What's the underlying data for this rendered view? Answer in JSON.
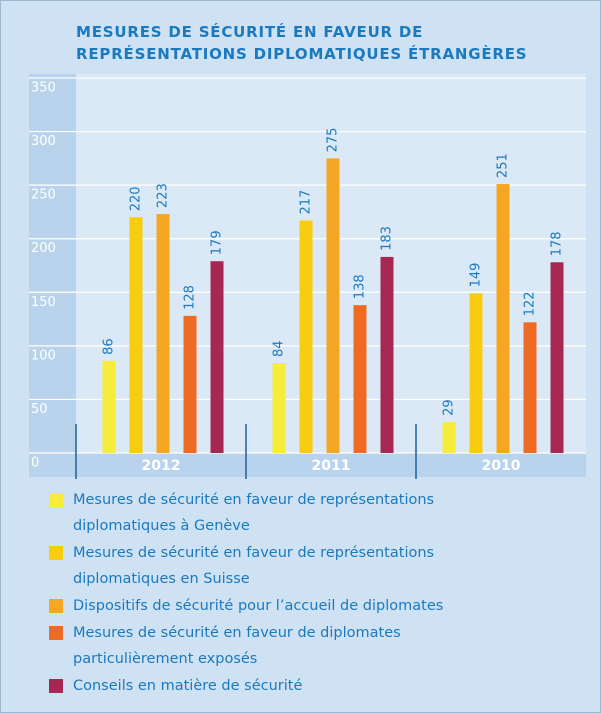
{
  "chart_data": {
    "type": "bar",
    "title": "Mesures de sécurité en faveur de représentations diplomatiques étrangères",
    "categories": [
      "2012",
      "2011",
      "2010"
    ],
    "series": [
      {
        "name": "Mesures de sécurité en faveur de représentations diplomatiques à Genève",
        "color": "#f6ec3c",
        "values": [
          86,
          84,
          29
        ]
      },
      {
        "name": "Mesures de sécurité en faveur de représentations diplomatiques en Suisse",
        "color": "#f8cc10",
        "values": [
          220,
          217,
          149
        ]
      },
      {
        "name": "Dispositifs de sécurité pour l’accueil de diplomates",
        "color": "#f5a623",
        "values": [
          223,
          275,
          251
        ]
      },
      {
        "name": "Mesures de sécurité en faveur de diplomates particulièrement exposés",
        "color": "#ef6a23",
        "values": [
          128,
          138,
          122
        ]
      },
      {
        "name": "Conseils en matière de sécurité",
        "color": "#a62752",
        "values": [
          179,
          183,
          178
        ]
      }
    ],
    "ylim": [
      0,
      350
    ],
    "yticks": [
      0,
      50,
      100,
      150,
      200,
      250,
      300,
      350
    ],
    "grid": true
  }
}
